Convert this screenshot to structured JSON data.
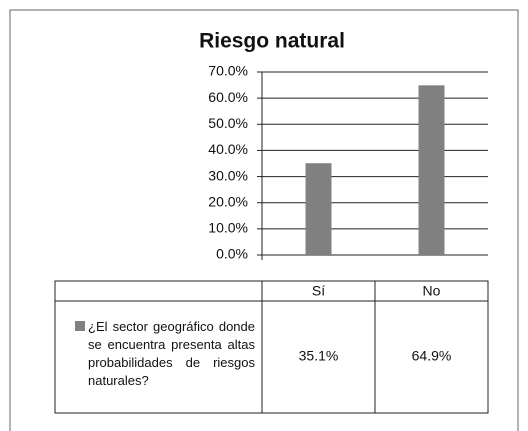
{
  "chart_data": {
    "type": "bar",
    "title": "Riesgo natural",
    "categories": [
      "Sí",
      "No"
    ],
    "series": [
      {
        "name": "¿El sector geográfico donde se encuentra presenta altas probabilidades de riesgos naturales?",
        "color": "#808080",
        "values": [
          35.1,
          64.9
        ],
        "value_labels": [
          "35.1%",
          "64.9%"
        ]
      }
    ],
    "ylim": [
      0,
      70
    ],
    "yticks": [
      {
        "value": 0,
        "label": "0.0%"
      },
      {
        "value": 10,
        "label": "10.0%"
      },
      {
        "value": 20,
        "label": "20.0%"
      },
      {
        "value": 30,
        "label": "30.0%"
      },
      {
        "value": 40,
        "label": "40.0%"
      },
      {
        "value": 50,
        "label": "50.0%"
      },
      {
        "value": 60,
        "label": "60.0%"
      },
      {
        "value": 70,
        "label": "70.0%"
      }
    ],
    "grid": true
  }
}
